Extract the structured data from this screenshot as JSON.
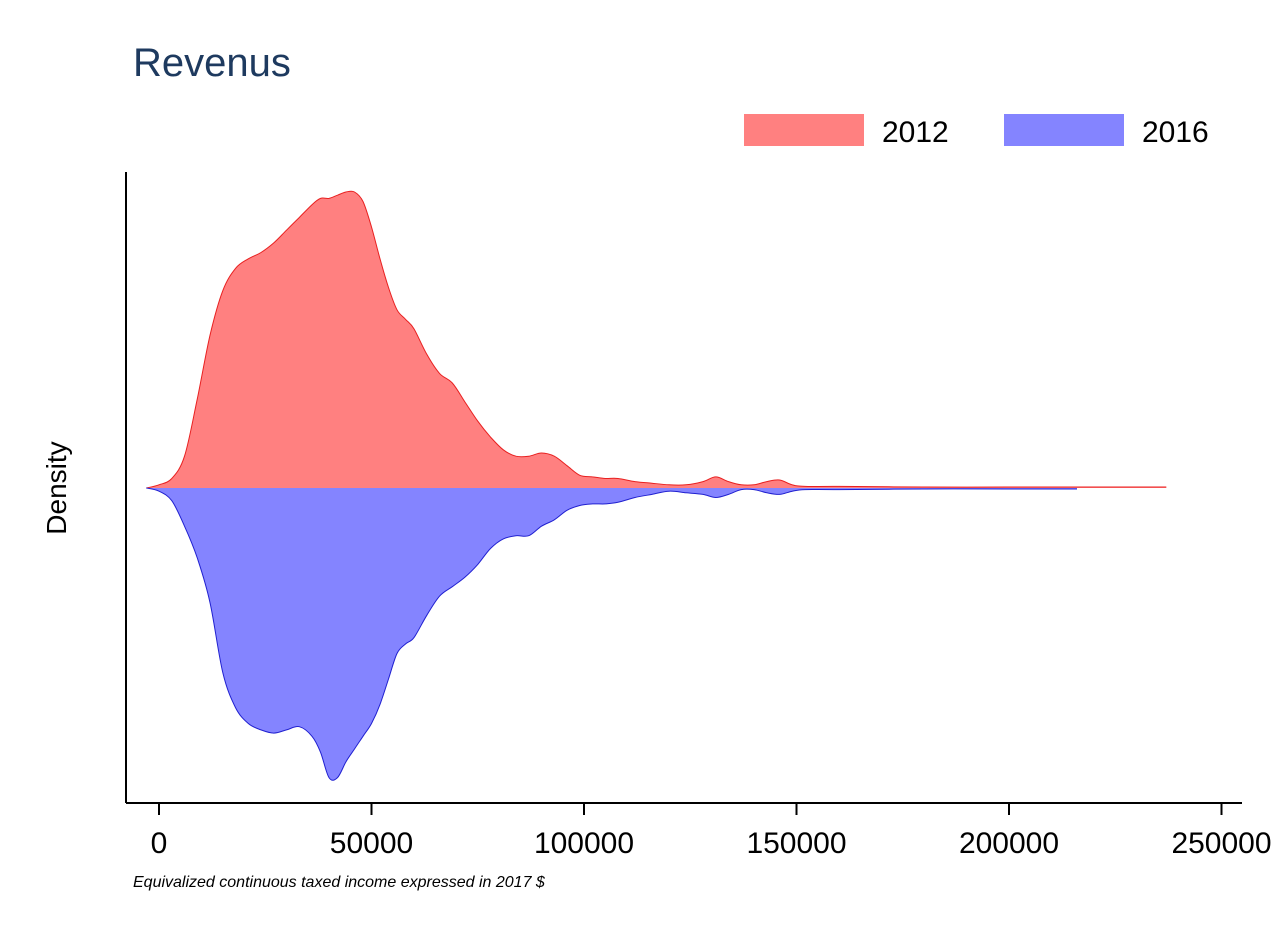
{
  "chart_data": {
    "type": "area",
    "title": "Revenus",
    "xlabel": "Equivalized continuous taxed income expressed in 2017 $",
    "ylabel": "Density",
    "xlim": [
      -5000,
      252000
    ],
    "xticks": [
      0,
      50000,
      100000,
      150000,
      200000,
      250000
    ],
    "xtick_labels": [
      "0",
      "50000",
      "100000",
      "150000",
      "200000",
      "250000"
    ],
    "legend_position": "top-right",
    "colors": {
      "title": "#1e3a5f",
      "2012_fill": "#ff8080",
      "2012_line": "#e82020",
      "2016_fill": "#8484ff",
      "2016_line": "#2020d0"
    },
    "y_ticks_shown": false,
    "grid": false,
    "mirrored": true,
    "series": [
      {
        "name": "2012",
        "direction": "up",
        "x": [
          -3000,
          0,
          3000,
          6000,
          9000,
          12000,
          15000,
          18000,
          21000,
          24000,
          27000,
          30000,
          33000,
          36000,
          38000,
          40000,
          42000,
          44000,
          46000,
          48000,
          50000,
          52000,
          54000,
          56000,
          58000,
          60000,
          63000,
          66000,
          69000,
          72000,
          75000,
          78000,
          81000,
          84000,
          87000,
          90000,
          93000,
          96000,
          99000,
          102000,
          105000,
          108000,
          112000,
          116000,
          120000,
          124000,
          128000,
          131000,
          134000,
          137000,
          140000,
          143000,
          146000,
          149000,
          152000,
          160000,
          180000,
          200000,
          220000,
          237000
        ],
        "y": [
          0.0,
          0.01,
          0.03,
          0.1,
          0.28,
          0.48,
          0.62,
          0.69,
          0.72,
          0.74,
          0.77,
          0.81,
          0.85,
          0.89,
          0.91,
          0.91,
          0.92,
          0.93,
          0.93,
          0.9,
          0.82,
          0.72,
          0.63,
          0.56,
          0.53,
          0.5,
          0.42,
          0.36,
          0.33,
          0.27,
          0.21,
          0.16,
          0.12,
          0.1,
          0.1,
          0.11,
          0.1,
          0.07,
          0.04,
          0.035,
          0.03,
          0.03,
          0.02,
          0.015,
          0.01,
          0.01,
          0.02,
          0.035,
          0.02,
          0.01,
          0.01,
          0.02,
          0.025,
          0.01,
          0.005,
          0.005,
          0.003,
          0.003,
          0.003,
          0.003
        ]
      },
      {
        "name": "2016",
        "direction": "down",
        "x": [
          -3000,
          0,
          3000,
          6000,
          9000,
          12000,
          15000,
          18000,
          21000,
          24000,
          27000,
          30000,
          33000,
          36000,
          38000,
          40000,
          42000,
          44000,
          46000,
          48000,
          50000,
          52000,
          54000,
          56000,
          58000,
          60000,
          63000,
          66000,
          69000,
          72000,
          75000,
          78000,
          81000,
          84000,
          87000,
          90000,
          93000,
          96000,
          99000,
          102000,
          105000,
          108000,
          112000,
          116000,
          120000,
          124000,
          128000,
          131000,
          134000,
          137000,
          140000,
          143000,
          146000,
          149000,
          152000,
          160000,
          180000,
          200000,
          216000
        ],
        "y": [
          0.0,
          0.01,
          0.04,
          0.12,
          0.22,
          0.36,
          0.58,
          0.69,
          0.74,
          0.76,
          0.77,
          0.76,
          0.75,
          0.78,
          0.83,
          0.91,
          0.91,
          0.86,
          0.82,
          0.78,
          0.74,
          0.68,
          0.6,
          0.52,
          0.49,
          0.47,
          0.4,
          0.34,
          0.31,
          0.28,
          0.24,
          0.19,
          0.16,
          0.15,
          0.15,
          0.12,
          0.1,
          0.07,
          0.055,
          0.05,
          0.05,
          0.045,
          0.03,
          0.02,
          0.01,
          0.015,
          0.02,
          0.03,
          0.02,
          0.005,
          0.005,
          0.015,
          0.02,
          0.01,
          0.005,
          0.005,
          0.003,
          0.003,
          0.003
        ]
      }
    ]
  }
}
